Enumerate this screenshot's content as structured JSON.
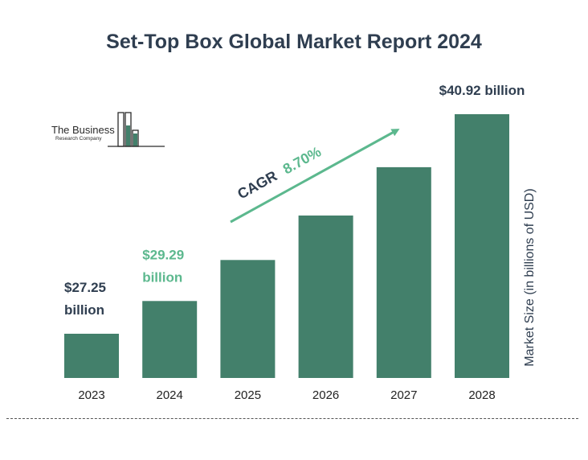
{
  "title": "Set-Top Box Global Market Report 2024",
  "logo": {
    "name": "The Business",
    "sub": "Research Company"
  },
  "cagr": {
    "prefix": "CAGR",
    "value": "8.70%"
  },
  "colors": {
    "bar": "#43806b",
    "highlight": "#5cb88e",
    "dark_text": "#2f3e50"
  },
  "chart_data": {
    "type": "bar",
    "title": "Set-Top Box Global Market Report 2024",
    "categories": [
      "2023",
      "2024",
      "2025",
      "2026",
      "2027",
      "2028"
    ],
    "values": [
      27.25,
      29.29,
      31.84,
      34.61,
      37.62,
      40.92
    ],
    "ylabel": "Market Size (in billions of USD)",
    "xlabel": "",
    "data_labels": [
      {
        "index": 0,
        "lines": [
          "$27.25",
          "billion"
        ],
        "style": "dark"
      },
      {
        "index": 1,
        "lines": [
          "$29.29",
          "billion"
        ],
        "style": "green"
      },
      {
        "index": 5,
        "lines": [
          "$40.92 billion"
        ],
        "style": "dark"
      }
    ],
    "grid": false,
    "legend": "none"
  }
}
